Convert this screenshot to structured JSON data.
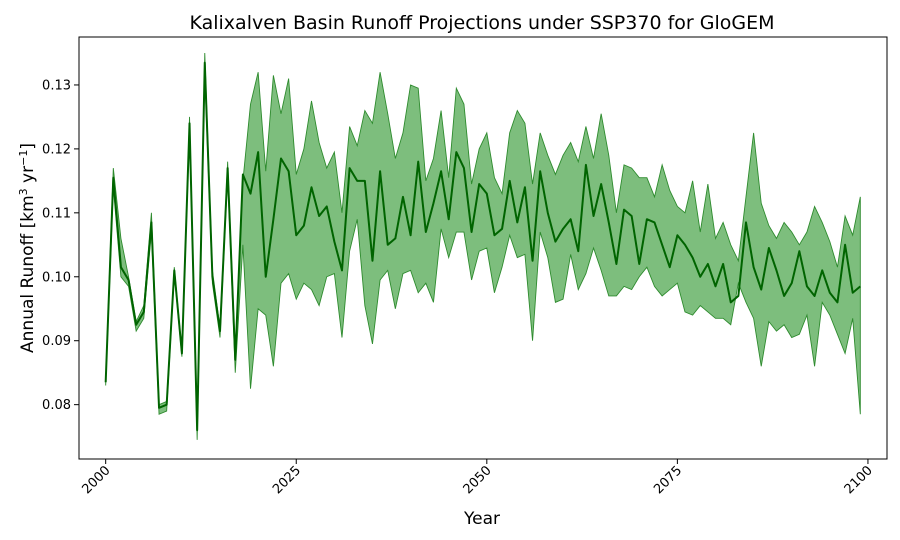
{
  "chart_data": {
    "type": "line",
    "title": "Kalixalven Basin Runoff Projections under SSP370 for GloGEM",
    "xlabel": "Year",
    "ylabel_parts": {
      "main": "Annual Runoff [km",
      "sup1": "3",
      "mid": " yr",
      "sup2": "−1",
      "end": "]"
    },
    "xlim": [
      1996.5,
      2102.5
    ],
    "ylim": [
      0.0715,
      0.1375
    ],
    "xticks": [
      2000,
      2025,
      2050,
      2075,
      2100
    ],
    "xtick_labels": [
      "2000",
      "2025",
      "2050",
      "2075",
      "2100"
    ],
    "yticks": [
      0.08,
      0.09,
      0.1,
      0.11,
      0.12,
      0.13
    ],
    "ytick_labels": [
      "0.08",
      "0.09",
      "0.10",
      "0.11",
      "0.12",
      "0.13"
    ],
    "x": [
      2000,
      2001,
      2002,
      2003,
      2004,
      2005,
      2006,
      2007,
      2008,
      2009,
      2010,
      2011,
      2012,
      2013,
      2014,
      2015,
      2016,
      2017,
      2018,
      2019,
      2020,
      2021,
      2022,
      2023,
      2024,
      2025,
      2026,
      2027,
      2028,
      2029,
      2030,
      2031,
      2032,
      2033,
      2034,
      2035,
      2036,
      2037,
      2038,
      2039,
      2040,
      2041,
      2042,
      2043,
      2044,
      2045,
      2046,
      2047,
      2048,
      2049,
      2050,
      2051,
      2052,
      2053,
      2054,
      2055,
      2056,
      2057,
      2058,
      2059,
      2060,
      2061,
      2062,
      2063,
      2064,
      2065,
      2066,
      2067,
      2068,
      2069,
      2070,
      2071,
      2072,
      2073,
      2074,
      2075,
      2076,
      2077,
      2078,
      2079,
      2080,
      2081,
      2082,
      2083,
      2084,
      2085,
      2086,
      2087,
      2088,
      2089,
      2090,
      2091,
      2092,
      2093,
      2094,
      2095,
      2096,
      2097,
      2098,
      2099
    ],
    "series": [
      {
        "role": "mean",
        "color": "#006400",
        "values": [
          0.0835,
          0.1155,
          0.1015,
          0.0995,
          0.0925,
          0.0945,
          0.1085,
          0.0795,
          0.08,
          0.101,
          0.088,
          0.124,
          0.076,
          0.1335,
          0.1,
          0.0915,
          0.117,
          0.087,
          0.116,
          0.113,
          0.1195,
          0.1,
          0.109,
          0.1185,
          0.1165,
          0.1065,
          0.108,
          0.114,
          0.1095,
          0.111,
          0.1055,
          0.101,
          0.117,
          0.115,
          0.115,
          0.1025,
          0.1165,
          0.105,
          0.106,
          0.1125,
          0.1065,
          0.118,
          0.107,
          0.1115,
          0.1165,
          0.109,
          0.1195,
          0.117,
          0.107,
          0.1145,
          0.113,
          0.1065,
          0.1075,
          0.115,
          0.1085,
          0.114,
          0.1025,
          0.1165,
          0.11,
          0.1055,
          0.1075,
          0.109,
          0.104,
          0.1175,
          0.1095,
          0.1145,
          0.1085,
          0.102,
          0.1105,
          0.1095,
          0.102,
          0.109,
          0.1085,
          0.105,
          0.1015,
          0.1065,
          0.105,
          0.103,
          0.1,
          0.102,
          0.0985,
          0.102,
          0.096,
          0.097,
          0.1085,
          0.1015,
          0.098,
          0.1045,
          0.101,
          0.097,
          0.099,
          0.104,
          0.0985,
          0.097,
          0.101,
          0.0975,
          0.096,
          0.105,
          0.0975,
          0.0985
        ]
      },
      {
        "role": "upper-bound",
        "color": "#60b060",
        "values": [
          0.084,
          0.117,
          0.106,
          0.1,
          0.093,
          0.0955,
          0.11,
          0.08,
          0.0805,
          0.1015,
          0.0885,
          0.125,
          0.0765,
          0.135,
          0.101,
          0.092,
          0.118,
          0.088,
          0.115,
          0.127,
          0.132,
          0.1165,
          0.1315,
          0.1255,
          0.131,
          0.116,
          0.12,
          0.1275,
          0.121,
          0.117,
          0.1195,
          0.11,
          0.1235,
          0.1205,
          0.126,
          0.124,
          0.132,
          0.1255,
          0.1185,
          0.1225,
          0.13,
          0.1295,
          0.115,
          0.1185,
          0.126,
          0.1155,
          0.1295,
          0.127,
          0.1145,
          0.12,
          0.1225,
          0.1155,
          0.113,
          0.1225,
          0.126,
          0.124,
          0.1145,
          0.1225,
          0.119,
          0.116,
          0.119,
          0.121,
          0.118,
          0.1235,
          0.1185,
          0.1255,
          0.119,
          0.11,
          0.1175,
          0.117,
          0.1155,
          0.1155,
          0.1125,
          0.1175,
          0.1135,
          0.111,
          0.11,
          0.115,
          0.107,
          0.1145,
          0.106,
          0.1085,
          0.105,
          0.1025,
          0.1125,
          0.1225,
          0.1115,
          0.108,
          0.106,
          0.1085,
          0.107,
          0.105,
          0.107,
          0.111,
          0.1085,
          0.1055,
          0.1015,
          0.1095,
          0.1065,
          0.1125
        ]
      },
      {
        "role": "lower-bound",
        "color": "#60b060",
        "values": [
          0.083,
          0.114,
          0.1,
          0.0985,
          0.0915,
          0.0935,
          0.107,
          0.0785,
          0.079,
          0.1005,
          0.0875,
          0.123,
          0.0745,
          0.132,
          0.099,
          0.0905,
          0.116,
          0.085,
          0.105,
          0.0825,
          0.095,
          0.094,
          0.086,
          0.099,
          0.1005,
          0.0965,
          0.099,
          0.098,
          0.0955,
          0.1,
          0.1005,
          0.0905,
          0.104,
          0.109,
          0.0955,
          0.0895,
          0.0995,
          0.101,
          0.095,
          0.1005,
          0.101,
          0.0975,
          0.099,
          0.096,
          0.1075,
          0.103,
          0.107,
          0.107,
          0.0995,
          0.104,
          0.1045,
          0.0975,
          0.1015,
          0.1065,
          0.103,
          0.1035,
          0.09,
          0.107,
          0.103,
          0.096,
          0.0965,
          0.1035,
          0.098,
          0.1005,
          0.1045,
          0.101,
          0.097,
          0.097,
          0.0985,
          0.098,
          0.1,
          0.1015,
          0.0985,
          0.097,
          0.098,
          0.099,
          0.0945,
          0.094,
          0.0955,
          0.0945,
          0.0935,
          0.0935,
          0.0925,
          0.099,
          0.096,
          0.0935,
          0.086,
          0.093,
          0.0915,
          0.0925,
          0.0905,
          0.091,
          0.094,
          0.086,
          0.096,
          0.094,
          0.091,
          0.088,
          0.0935,
          0.0785
        ]
      }
    ],
    "legend": "none",
    "grid": false
  }
}
